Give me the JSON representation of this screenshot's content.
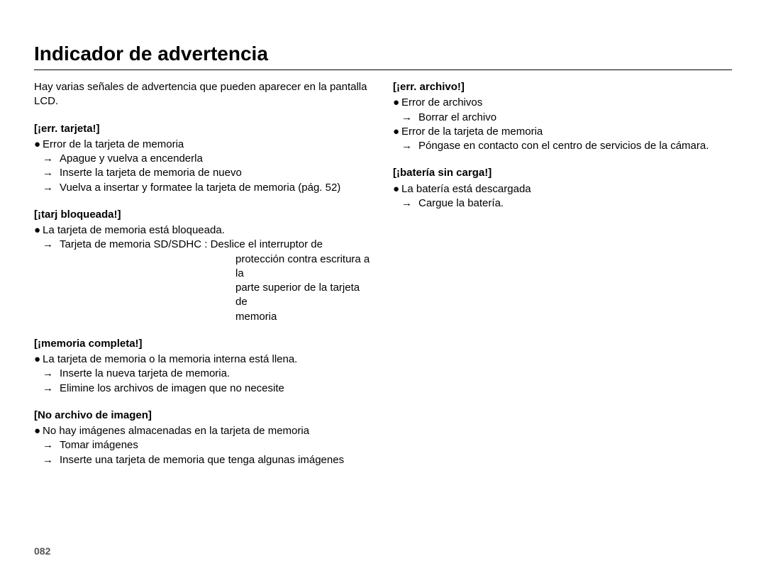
{
  "page": {
    "title": "Indicador de advertencia",
    "intro": "Hay varias señales de advertencia que pueden aparecer en la pantalla LCD.",
    "page_number": "082"
  },
  "glyphs": {
    "bullet": "●",
    "arrow": "→"
  },
  "left": {
    "s1": {
      "title": "[¡err. tarjeta!]",
      "b1": "Error de la tarjeta de memoria",
      "a1": "Apague y vuelva a encenderla",
      "a2": "Inserte la tarjeta de memoria de nuevo",
      "a3": "Vuelva a insertar y formatee la tarjeta de memoria (pág. 52)"
    },
    "s2": {
      "title": "[¡tarj bloqueada!]",
      "b1": "La tarjeta de memoria está bloqueada.",
      "a1": "Tarjeta de memoria SD/SDHC : Deslice el interruptor de",
      "a1b": "protección contra escritura a la",
      "a1c": "parte superior de la tarjeta de",
      "a1d": "memoria"
    },
    "s3": {
      "title": "[¡memoria completa!]",
      "b1": "La tarjeta de memoria o la memoria interna está llena.",
      "a1": "Inserte la nueva tarjeta de memoria.",
      "a2": "Elimine los archivos de imagen que no necesite"
    },
    "s4": {
      "title": "[No archivo de imagen]",
      "b1": "No hay imágenes almacenadas en la tarjeta de memoria",
      "a1": "Tomar imágenes",
      "a2": "Inserte una tarjeta de memoria que tenga algunas imágenes"
    }
  },
  "right": {
    "s1": {
      "title": "[¡err. archivo!]",
      "b1": "Error de archivos",
      "a1": "Borrar el archivo",
      "b2": "Error de la tarjeta de memoria",
      "a2": "Póngase en contacto con el centro de servicios de la cámara."
    },
    "s2": {
      "title": "[¡batería sin carga!]",
      "b1": "La batería está descargada",
      "a1": "Cargue la batería."
    }
  }
}
